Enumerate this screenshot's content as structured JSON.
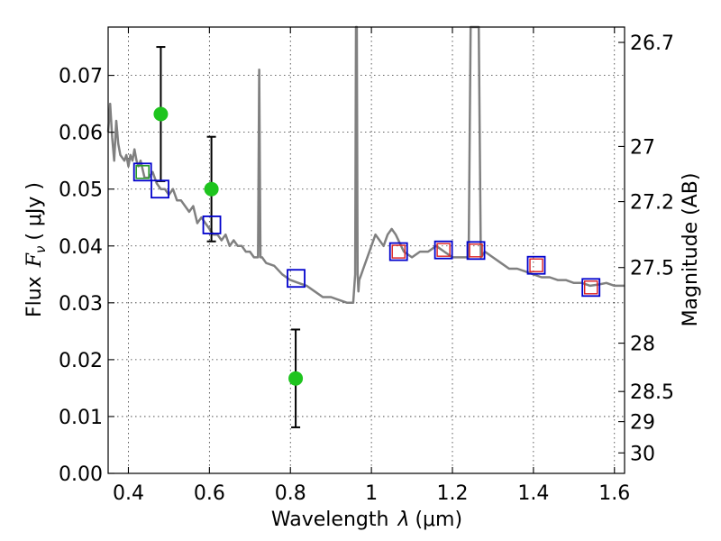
{
  "chart_data": {
    "type": "scatter",
    "xlabel_prefix": "Wavelength",
    "xlabel_symbol": "λ",
    "xlabel_units": "(μm)",
    "ylabel_prefix": "Flux",
    "ylabel_symbol": "F",
    "ylabel_subscript": "ν",
    "ylabel_units": "( μJy )",
    "y2label": "Magnitude (AB)",
    "xlim": [
      0.35,
      1.625
    ],
    "ylim": [
      0.0,
      0.0785
    ],
    "xticks": [
      0.4,
      0.6,
      0.8,
      1.0,
      1.2,
      1.4,
      1.6
    ],
    "xtick_labels": [
      "0.4",
      "0.6",
      "0.8",
      "1",
      "1.2",
      "1.4",
      "1.6"
    ],
    "yticks": [
      0.0,
      0.01,
      0.02,
      0.03,
      0.04,
      0.05,
      0.06,
      0.07
    ],
    "ytick_labels": [
      "0.00",
      "0.01",
      "0.02",
      "0.03",
      "0.04",
      "0.05",
      "0.06",
      "0.07"
    ],
    "y2ticks": [
      {
        "label": "26.7",
        "flux": 0.0758
      },
      {
        "label": "27",
        "flux": 0.0575
      },
      {
        "label": "27.2",
        "flux": 0.0478
      },
      {
        "label": "27.5",
        "flux": 0.0362
      },
      {
        "label": "28",
        "flux": 0.0229
      },
      {
        "label": "28.5",
        "flux": 0.0144
      },
      {
        "label": "29",
        "flux": 0.0091
      },
      {
        "label": "30",
        "flux": 0.0036
      }
    ],
    "colors": {
      "spectrum": "#808080",
      "measured": "#1ec41e",
      "model_box": "#0000cc",
      "inner_box": "#dd2222",
      "inner_green": "#2a9a2a",
      "errorbar": "#000000"
    },
    "series": [
      {
        "name": "model spectrum",
        "x": [
          0.35,
          0.355,
          0.36,
          0.365,
          0.37,
          0.375,
          0.38,
          0.39,
          0.395,
          0.4,
          0.405,
          0.41,
          0.415,
          0.42,
          0.425,
          0.43,
          0.44,
          0.45,
          0.46,
          0.47,
          0.48,
          0.49,
          0.5,
          0.51,
          0.52,
          0.53,
          0.54,
          0.55,
          0.56,
          0.57,
          0.58,
          0.59,
          0.6,
          0.61,
          0.62,
          0.63,
          0.64,
          0.65,
          0.66,
          0.67,
          0.68,
          0.69,
          0.7,
          0.71,
          0.72,
          0.723,
          0.726,
          0.73,
          0.74,
          0.76,
          0.78,
          0.8,
          0.82,
          0.84,
          0.86,
          0.88,
          0.9,
          0.92,
          0.94,
          0.955,
          0.96,
          0.962,
          0.964,
          0.966,
          0.968,
          0.97,
          0.975,
          0.98,
          0.99,
          1.0,
          1.01,
          1.02,
          1.03,
          1.04,
          1.05,
          1.06,
          1.08,
          1.1,
          1.12,
          1.14,
          1.16,
          1.18,
          1.2,
          1.22,
          1.24,
          1.245,
          1.25,
          1.26,
          1.265,
          1.27,
          1.28,
          1.3,
          1.32,
          1.34,
          1.36,
          1.38,
          1.4,
          1.42,
          1.44,
          1.46,
          1.48,
          1.5,
          1.52,
          1.54,
          1.56,
          1.58,
          1.6,
          1.625
        ],
        "y": [
          0.06,
          0.065,
          0.059,
          0.055,
          0.062,
          0.058,
          0.056,
          0.055,
          0.056,
          0.054,
          0.056,
          0.055,
          0.057,
          0.055,
          0.054,
          0.055,
          0.052,
          0.052,
          0.053,
          0.051,
          0.05,
          0.05,
          0.049,
          0.05,
          0.048,
          0.048,
          0.047,
          0.046,
          0.047,
          0.044,
          0.045,
          0.044,
          0.043,
          0.042,
          0.042,
          0.041,
          0.042,
          0.04,
          0.041,
          0.04,
          0.04,
          0.039,
          0.039,
          0.038,
          0.038,
          0.071,
          0.038,
          0.038,
          0.037,
          0.0365,
          0.035,
          0.034,
          0.0335,
          0.033,
          0.032,
          0.031,
          0.031,
          0.0305,
          0.03,
          0.03,
          0.035,
          0.0785,
          0.0785,
          0.035,
          0.032,
          0.034,
          0.035,
          0.036,
          0.038,
          0.04,
          0.042,
          0.041,
          0.04,
          0.042,
          0.043,
          0.042,
          0.039,
          0.038,
          0.039,
          0.039,
          0.04,
          0.039,
          0.038,
          0.038,
          0.038,
          0.0785,
          0.0785,
          0.0785,
          0.0785,
          0.038,
          0.039,
          0.038,
          0.037,
          0.036,
          0.036,
          0.0355,
          0.035,
          0.0345,
          0.0345,
          0.034,
          0.034,
          0.0335,
          0.0335,
          0.033,
          0.0332,
          0.0335,
          0.033,
          0.033
        ]
      },
      {
        "name": "measured",
        "points": [
          {
            "x": 0.48,
            "y": 0.0632,
            "err": 0.0118
          },
          {
            "x": 0.605,
            "y": 0.05,
            "err": 0.0092
          },
          {
            "x": 0.813,
            "y": 0.0167,
            "err": 0.0086
          }
        ]
      },
      {
        "name": "model photometry",
        "points": [
          {
            "x": 0.435,
            "y": 0.053,
            "inner": "green"
          },
          {
            "x": 0.478,
            "y": 0.05,
            "inner": "none"
          },
          {
            "x": 0.606,
            "y": 0.0437,
            "inner": "none"
          },
          {
            "x": 0.814,
            "y": 0.0343,
            "inner": "none"
          },
          {
            "x": 1.067,
            "y": 0.039,
            "inner": "red"
          },
          {
            "x": 1.178,
            "y": 0.0393,
            "inner": "red"
          },
          {
            "x": 1.258,
            "y": 0.0392,
            "inner": "red"
          },
          {
            "x": 1.407,
            "y": 0.0366,
            "inner": "red"
          },
          {
            "x": 1.542,
            "y": 0.0327,
            "inner": "red"
          }
        ]
      }
    ]
  }
}
